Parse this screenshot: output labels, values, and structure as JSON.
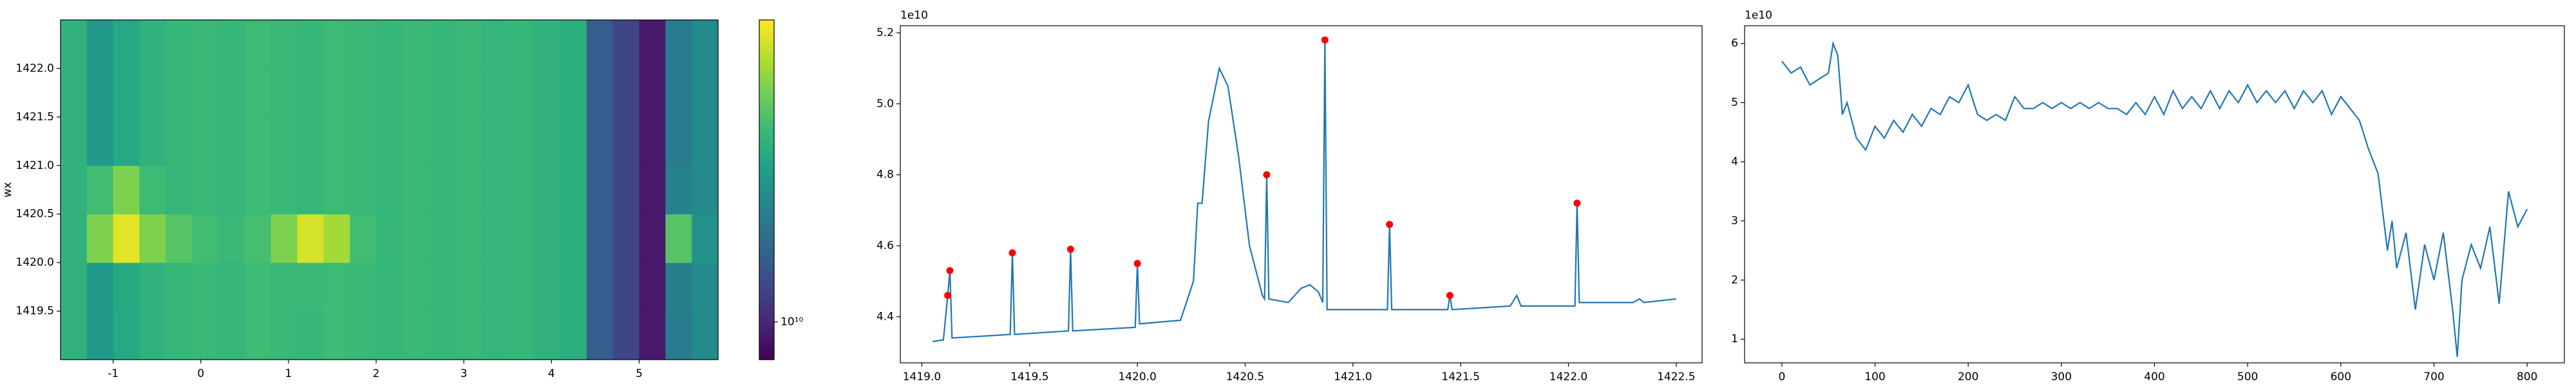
{
  "chart_data": [
    {
      "type": "heatmap",
      "ylabel": "wx",
      "x_edges": [
        -1.6,
        -1.3,
        -1.0,
        -0.7,
        -0.4,
        -0.1,
        0.2,
        0.5,
        0.8,
        1.1,
        1.4,
        1.7,
        2.0,
        2.3,
        2.6,
        2.9,
        3.2,
        3.5,
        3.8,
        4.1,
        4.4,
        4.7,
        5.0,
        5.3,
        5.6,
        5.9
      ],
      "y_edges": [
        1419,
        1419.5,
        1420,
        1420.5,
        1421,
        1421.5,
        1422,
        1422.5
      ],
      "values": [
        [
          40000000000.0,
          30000000000.0,
          35000000000.0,
          40000000000.0,
          42000000000.0,
          43000000000.0,
          42000000000.0,
          44000000000.0,
          43000000000.0,
          42000000000.0,
          44000000000.0,
          43000000000.0,
          42000000000.0,
          43000000000.0,
          42000000000.0,
          43000000000.0,
          41000000000.0,
          42000000000.0,
          40000000000.0,
          38000000000.0,
          16000000000.0,
          13000000000.0,
          9000000000.0,
          22000000000.0,
          26000000000.0
        ],
        [
          40000000000.0,
          30000000000.0,
          36000000000.0,
          40000000000.0,
          42000000000.0,
          43000000000.0,
          42000000000.0,
          44000000000.0,
          43000000000.0,
          43000000000.0,
          44000000000.0,
          43000000000.0,
          42000000000.0,
          43000000000.0,
          42000000000.0,
          43000000000.0,
          41000000000.0,
          42000000000.0,
          40000000000.0,
          38000000000.0,
          16000000000.0,
          13000000000.0,
          9000000000.0,
          23000000000.0,
          26000000000.0
        ],
        [
          40000000000.0,
          60000000000.0,
          90000000000.0,
          60000000000.0,
          50000000000.0,
          45000000000.0,
          43000000000.0,
          46000000000.0,
          60000000000.0,
          85000000000.0,
          70000000000.0,
          45000000000.0,
          42000000000.0,
          43000000000.0,
          42000000000.0,
          43000000000.0,
          41000000000.0,
          42000000000.0,
          40000000000.0,
          38000000000.0,
          16000000000.0,
          13000000000.0,
          9000000000.0,
          50000000000.0,
          28000000000.0
        ],
        [
          40000000000.0,
          45000000000.0,
          60000000000.0,
          44000000000.0,
          42000000000.0,
          43000000000.0,
          42000000000.0,
          44000000000.0,
          43000000000.0,
          42000000000.0,
          44000000000.0,
          43000000000.0,
          42000000000.0,
          43000000000.0,
          42000000000.0,
          43000000000.0,
          41000000000.0,
          42000000000.0,
          40000000000.0,
          38000000000.0,
          16000000000.0,
          13000000000.0,
          9000000000.0,
          24000000000.0,
          26000000000.0
        ],
        [
          40000000000.0,
          30000000000.0,
          35000000000.0,
          40000000000.0,
          42000000000.0,
          43000000000.0,
          42000000000.0,
          44000000000.0,
          43000000000.0,
          42000000000.0,
          44000000000.0,
          43000000000.0,
          42000000000.0,
          43000000000.0,
          42000000000.0,
          43000000000.0,
          41000000000.0,
          42000000000.0,
          40000000000.0,
          38000000000.0,
          16000000000.0,
          13000000000.0,
          9000000000.0,
          22000000000.0,
          26000000000.0
        ],
        [
          40000000000.0,
          30000000000.0,
          35000000000.0,
          40000000000.0,
          42000000000.0,
          43000000000.0,
          42000000000.0,
          44000000000.0,
          43000000000.0,
          42000000000.0,
          44000000000.0,
          43000000000.0,
          42000000000.0,
          43000000000.0,
          42000000000.0,
          43000000000.0,
          41000000000.0,
          42000000000.0,
          40000000000.0,
          38000000000.0,
          16000000000.0,
          13000000000.0,
          9000000000.0,
          22000000000.0,
          26000000000.0
        ],
        [
          40000000000.0,
          30000000000.0,
          35000000000.0,
          40000000000.0,
          42000000000.0,
          43000000000.0,
          42000000000.0,
          44000000000.0,
          43000000000.0,
          42000000000.0,
          44000000000.0,
          43000000000.0,
          42000000000.0,
          43000000000.0,
          42000000000.0,
          43000000000.0,
          41000000000.0,
          42000000000.0,
          40000000000.0,
          38000000000.0,
          16000000000.0,
          13000000000.0,
          9000000000.0,
          22000000000.0,
          26000000000.0
        ]
      ],
      "xlim": [
        -1.6,
        5.9
      ],
      "ylim": [
        1419,
        1422.5
      ],
      "xticks": [
        -1,
        0,
        1,
        2,
        3,
        4,
        5
      ],
      "yticks": [
        1419.5,
        {
          "value": 1420,
          "label": "1420.0"
        },
        1420.5,
        {
          "value": 1421,
          "label": "1421.0"
        },
        1421.5,
        {
          "value": 1422,
          "label": "1422.0"
        }
      ],
      "colormap": "viridis",
      "colorbar": {
        "clim": [
          7500000000.0,
          100000000000.0
        ],
        "log": true,
        "ticks": [
          {
            "value": 10000000000.0,
            "label": "10¹⁰"
          }
        ]
      }
    },
    {
      "type": "line",
      "offset_label": "1e10",
      "color": "#1f77b4",
      "x": [
        1419.05,
        1419.1,
        1419.12,
        1419.13,
        1419.14,
        1419.41,
        1419.42,
        1419.43,
        1419.68,
        1419.69,
        1419.7,
        1419.99,
        1420,
        1420.01,
        1420.2,
        1420.26,
        1420.28,
        1420.3,
        1420.33,
        1420.38,
        1420.42,
        1420.47,
        1420.52,
        1420.58,
        1420.59,
        1420.6,
        1420.61,
        1420.7,
        1420.76,
        1420.8,
        1420.84,
        1420.86,
        1420.87,
        1420.88,
        1421.16,
        1421.17,
        1421.18,
        1421.44,
        1421.45,
        1421.46,
        1421.73,
        1421.76,
        1421.78,
        1422.03,
        1422.04,
        1422.05,
        1422.3,
        1422.33,
        1422.35,
        1422.5
      ],
      "values": [
        4.33,
        4.335,
        4.46,
        4.53,
        4.34,
        4.35,
        4.58,
        4.35,
        4.36,
        4.59,
        4.36,
        4.37,
        4.55,
        4.38,
        4.39,
        4.5,
        4.72,
        4.72,
        4.95,
        5.1,
        5.05,
        4.85,
        4.6,
        4.46,
        4.45,
        4.8,
        4.45,
        4.44,
        4.48,
        4.49,
        4.47,
        4.44,
        5.18,
        4.42,
        4.42,
        4.66,
        4.42,
        4.42,
        4.46,
        4.42,
        4.43,
        4.46,
        4.43,
        4.43,
        4.72,
        4.44,
        4.44,
        4.45,
        4.44,
        4.45
      ],
      "peaks": {
        "color": "#ff0000",
        "x": [
          1419.12,
          1419.13,
          1419.42,
          1419.69,
          1420,
          1420.6,
          1420.87,
          1421.17,
          1421.45,
          1422.04
        ],
        "values": [
          4.46,
          4.53,
          4.58,
          4.59,
          4.55,
          4.8,
          5.18,
          4.66,
          4.46,
          4.72
        ]
      },
      "xlim": [
        1418.9,
        1422.62
      ],
      "ylim": [
        4.27,
        5.22
      ],
      "xticks": [
        {
          "value": 1419,
          "label": "1419.0"
        },
        1419.5,
        {
          "value": 1420,
          "label": "1420.0"
        },
        1420.5,
        {
          "value": 1421,
          "label": "1421.0"
        },
        1421.5,
        {
          "value": 1422,
          "label": "1422.0"
        },
        1422.5
      ],
      "yticks": [
        4.4,
        4.6,
        4.8,
        {
          "value": 5,
          "label": "5.0"
        },
        5.2
      ]
    },
    {
      "type": "line",
      "offset_label": "1e10",
      "color": "#1f77b4",
      "x": [
        0,
        10,
        20,
        30,
        40,
        50,
        55,
        60,
        65,
        70,
        80,
        90,
        100,
        110,
        120,
        130,
        140,
        150,
        160,
        170,
        180,
        190,
        200,
        210,
        220,
        230,
        240,
        250,
        260,
        270,
        280,
        290,
        300,
        310,
        320,
        330,
        340,
        350,
        360,
        370,
        380,
        390,
        400,
        410,
        420,
        430,
        440,
        450,
        460,
        470,
        480,
        490,
        500,
        510,
        520,
        530,
        540,
        550,
        560,
        570,
        580,
        590,
        600,
        610,
        620,
        630,
        640,
        650,
        655,
        660,
        670,
        680,
        690,
        700,
        710,
        720,
        725,
        730,
        740,
        750,
        760,
        770,
        780,
        790,
        800
      ],
      "values": [
        5.7,
        5.5,
        5.6,
        5.3,
        5.4,
        5.5,
        6.0,
        5.8,
        4.8,
        5.0,
        4.4,
        4.2,
        4.6,
        4.4,
        4.7,
        4.5,
        4.8,
        4.6,
        4.9,
        4.8,
        5.1,
        5.0,
        5.3,
        4.8,
        4.7,
        4.8,
        4.7,
        5.1,
        4.9,
        4.9,
        5.0,
        4.9,
        5.0,
        4.9,
        5.0,
        4.9,
        5.0,
        4.9,
        4.9,
        4.8,
        5.0,
        4.8,
        5.1,
        4.8,
        5.2,
        4.9,
        5.1,
        4.9,
        5.2,
        4.9,
        5.2,
        5.0,
        5.3,
        5.0,
        5.2,
        5.0,
        5.2,
        4.9,
        5.2,
        5.0,
        5.2,
        4.8,
        5.1,
        4.9,
        4.7,
        4.2,
        3.8,
        2.5,
        3.0,
        2.2,
        2.8,
        1.5,
        2.6,
        2.0,
        2.8,
        1.5,
        0.7,
        2.0,
        2.6,
        2.2,
        2.9,
        1.6,
        3.5,
        2.9,
        3.2
      ],
      "xlim": [
        -40,
        840
      ],
      "ylim": [
        0.6,
        6.3
      ],
      "xticks": [
        0,
        100,
        200,
        300,
        400,
        500,
        600,
        700,
        800
      ],
      "yticks": [
        1,
        2,
        3,
        4,
        5,
        6
      ]
    }
  ]
}
